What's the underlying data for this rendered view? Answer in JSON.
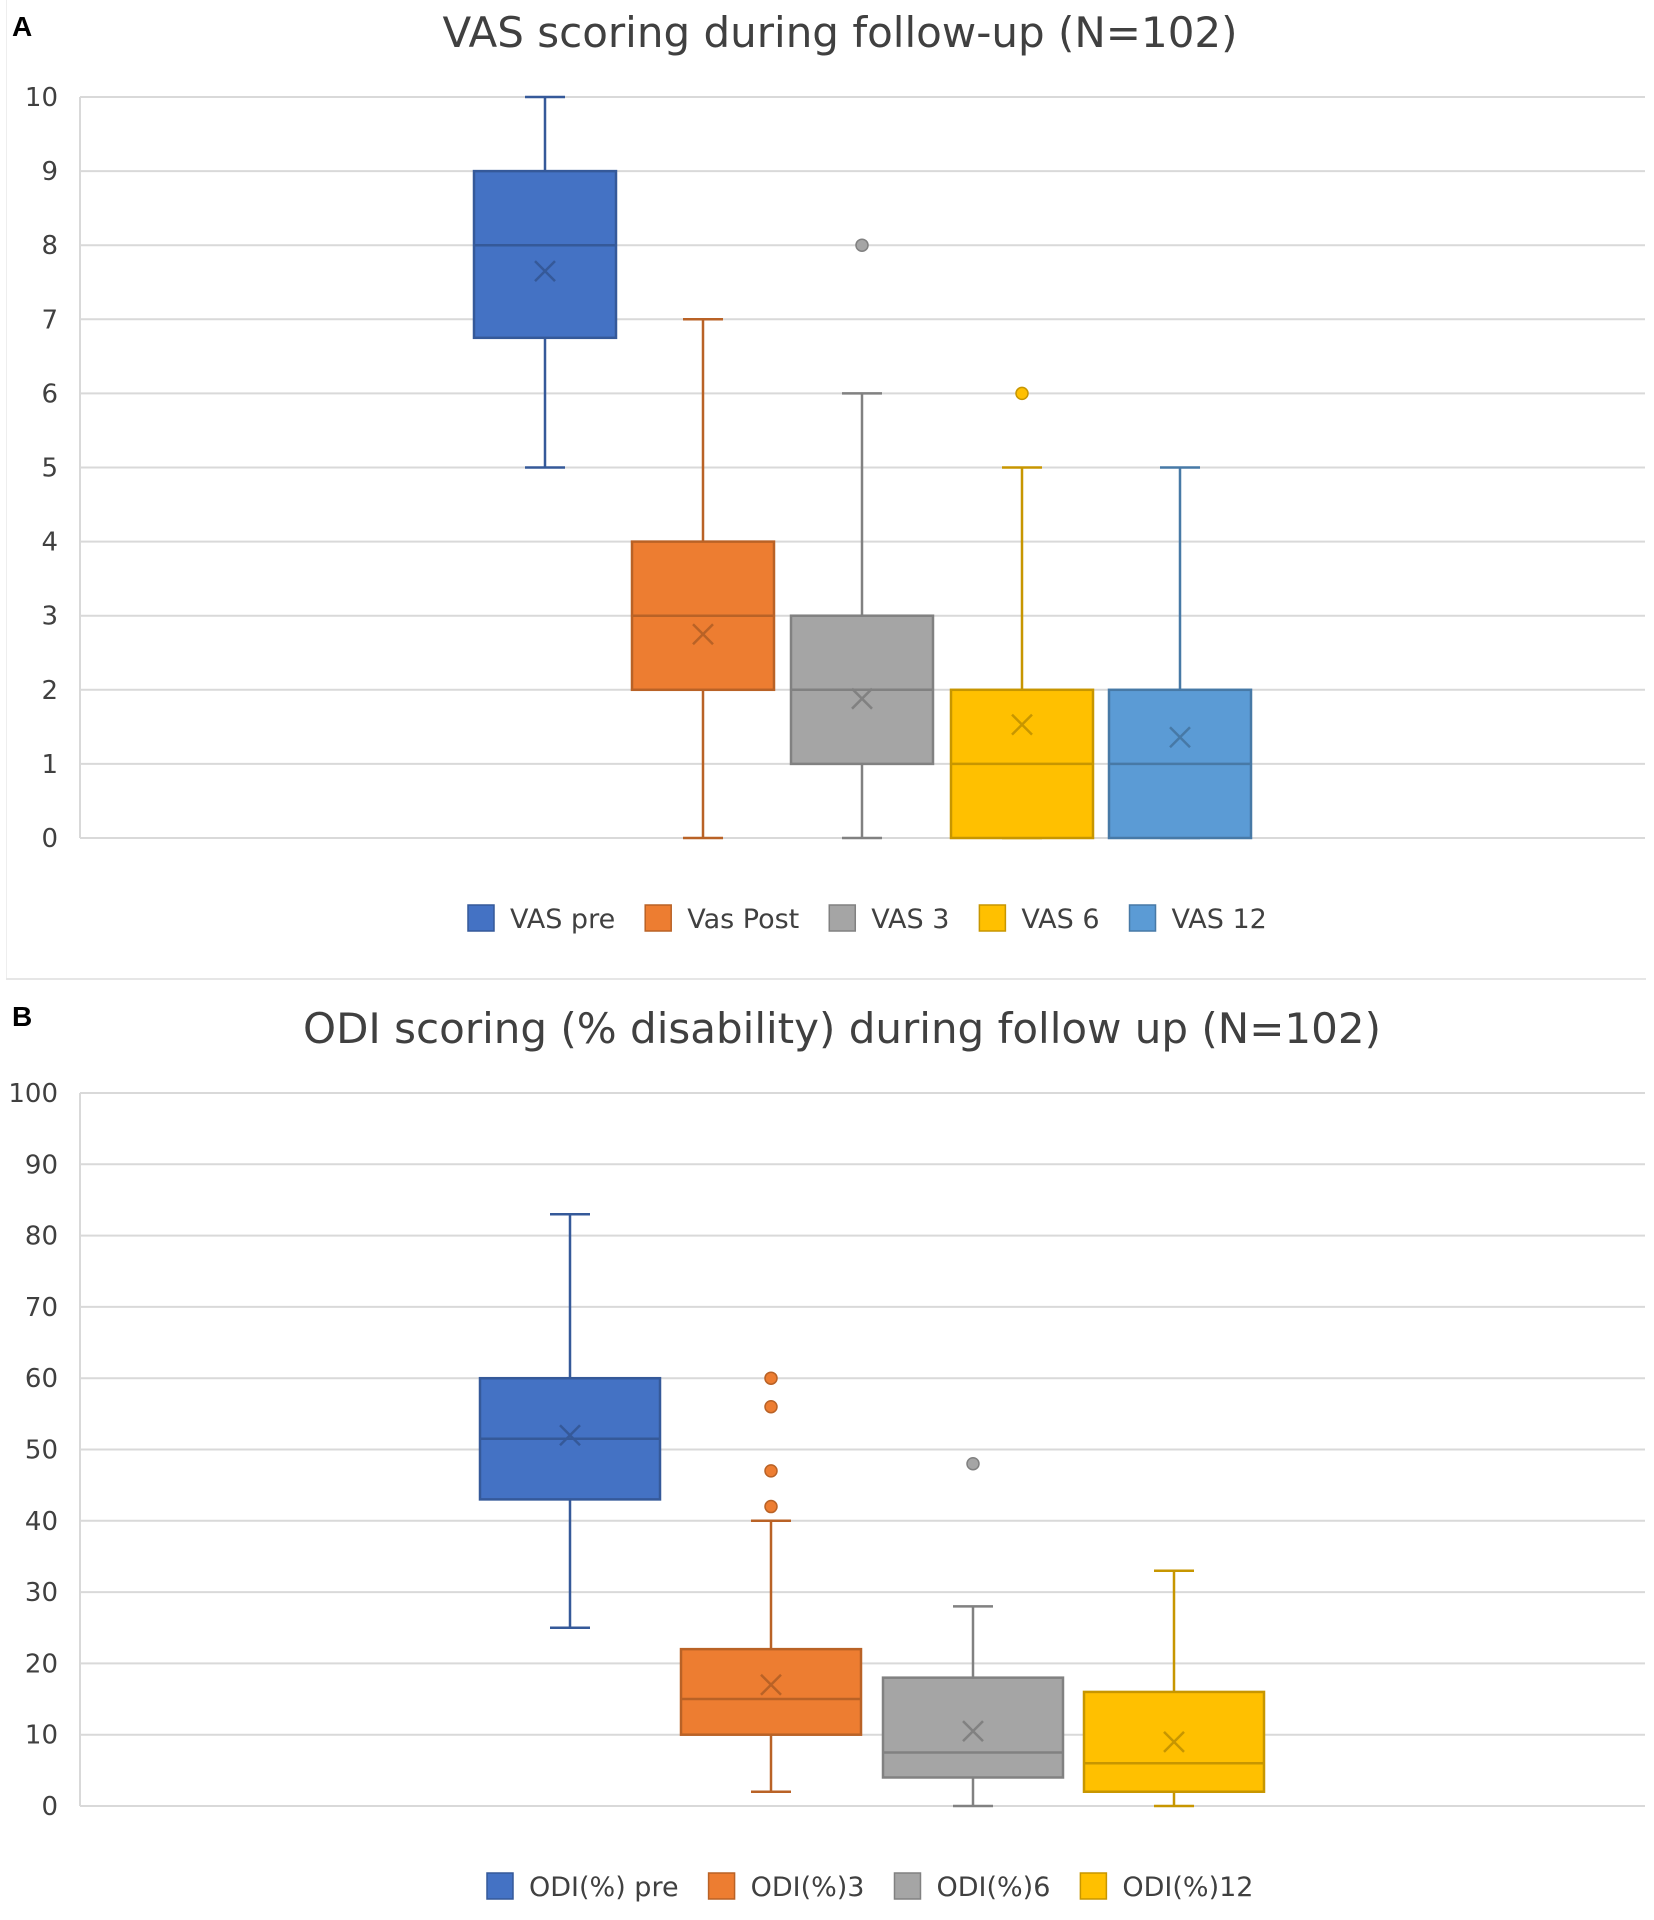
{
  "chart_data": [
    {
      "type": "box",
      "panel_label": "A",
      "title": "VAS scoring during follow-up (N=102)",
      "ylim": [
        0,
        10
      ],
      "yticks": [
        "0",
        "1",
        "2",
        "3",
        "4",
        "5",
        "6",
        "7",
        "8",
        "9",
        "10"
      ],
      "grid": true,
      "legend_position": "bottom",
      "series": [
        {
          "name": "VAS pre",
          "color": "#4472C4",
          "min": 5,
          "q1": 6.75,
          "median": 8,
          "q3": 9,
          "max": 10,
          "mean": 7.65,
          "outliers": []
        },
        {
          "name": "Vas Post",
          "color": "#ED7D31",
          "min": 0,
          "q1": 2,
          "median": 3,
          "q3": 4,
          "max": 7,
          "mean": 2.75,
          "outliers": []
        },
        {
          "name": "VAS 3",
          "color": "#A5A5A5",
          "min": 0,
          "q1": 1,
          "median": 2,
          "q3": 3,
          "max": 6,
          "mean": 1.88,
          "outliers": [
            8
          ]
        },
        {
          "name": "VAS 6",
          "color": "#FFC000",
          "min": 0,
          "q1": 0,
          "median": 1,
          "q3": 2,
          "max": 5,
          "mean": 1.53,
          "outliers": [
            6
          ]
        },
        {
          "name": "VAS 12",
          "color": "#5B9BD5",
          "min": 0,
          "q1": 0,
          "median": 1,
          "q3": 2,
          "max": 5,
          "mean": 1.36,
          "outliers": []
        }
      ]
    },
    {
      "type": "box",
      "panel_label": "B",
      "title": "ODI scoring (% disability) during follow up (N=102)",
      "ylim": [
        0,
        100
      ],
      "yticks": [
        "0",
        "10",
        "20",
        "30",
        "40",
        "50",
        "60",
        "70",
        "80",
        "90",
        "100"
      ],
      "grid": true,
      "legend_position": "bottom",
      "series": [
        {
          "name": "ODI(%) pre",
          "color": "#4472C4",
          "min": 25,
          "q1": 43,
          "median": 51.5,
          "q3": 60,
          "max": 83,
          "mean": 52,
          "outliers": []
        },
        {
          "name": "ODI(%)3",
          "color": "#ED7D31",
          "min": 2,
          "q1": 10,
          "median": 15,
          "q3": 22,
          "max": 40,
          "mean": 17,
          "outliers": [
            42,
            47,
            56,
            60
          ]
        },
        {
          "name": "ODI(%)6",
          "color": "#A5A5A5",
          "min": 0,
          "q1": 4,
          "median": 7.5,
          "q3": 18,
          "max": 28,
          "mean": 10.5,
          "outliers": [
            48
          ]
        },
        {
          "name": "ODI(%)12",
          "color": "#FFC000",
          "min": 0,
          "q1": 2,
          "median": 6,
          "q3": 16,
          "max": 33,
          "mean": 9,
          "outliers": []
        }
      ]
    }
  ]
}
